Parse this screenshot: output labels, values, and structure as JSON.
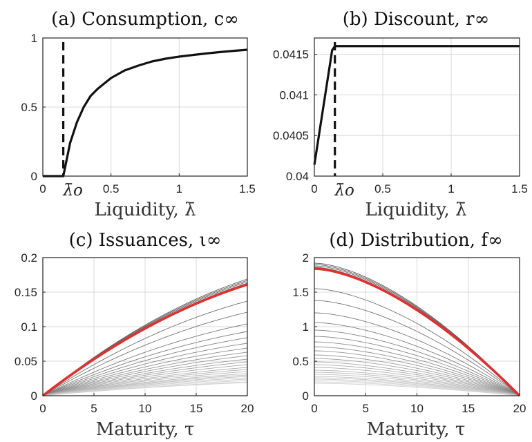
{
  "chart_data": [
    {
      "id": "a",
      "type": "line",
      "title": "(a) Consumption, c∞",
      "xlabel": "Liquidity, λ̄",
      "ylabel": "",
      "xlim": [
        0,
        1.5
      ],
      "ylim": [
        0,
        1
      ],
      "xticks": [
        0,
        0.5,
        1,
        1.5
      ],
      "xtick_labels": [
        "0",
        "0.5",
        "1",
        "1.5"
      ],
      "yticks": [
        0,
        0.5,
        1
      ],
      "ytick_labels": [
        "0",
        "0.5",
        "1"
      ],
      "vline": {
        "x": 0.15,
        "label": "λ̄o"
      },
      "grid": true,
      "series": [
        {
          "color": "#111111",
          "style": "solid",
          "x": [
            0,
            0.15,
            0.2,
            0.25,
            0.3,
            0.35,
            0.4,
            0.5,
            0.6,
            0.7,
            0.8,
            0.9,
            1.0,
            1.1,
            1.2,
            1.3,
            1.4,
            1.5
          ],
          "y": [
            0,
            0,
            0.24,
            0.39,
            0.5,
            0.58,
            0.63,
            0.71,
            0.765,
            0.8,
            0.83,
            0.85,
            0.865,
            0.877,
            0.888,
            0.898,
            0.907,
            0.915
          ]
        }
      ]
    },
    {
      "id": "b",
      "type": "line",
      "title": "(b) Discount, r∞",
      "xlabel": "Liquidity, λ̄",
      "ylabel": "",
      "xlim": [
        0,
        1.5
      ],
      "ylim": [
        0.04,
        0.0417
      ],
      "xticks": [
        0,
        0.5,
        1,
        1.5
      ],
      "xtick_labels": [
        "0",
        "0.5",
        "1",
        "1.5"
      ],
      "yticks": [
        0.04,
        0.0405,
        0.041,
        0.0415
      ],
      "ytick_labels": [
        "0.04",
        "0.0405",
        "0.041",
        "0.0415"
      ],
      "vline": {
        "x": 0.15,
        "label": "λ̄o"
      },
      "grid": true,
      "series": [
        {
          "color": "#111111",
          "style": "solid",
          "x": [
            0,
            0.13,
            0.15,
            1.5
          ],
          "y": [
            0.04014,
            0.04155,
            0.0416,
            0.0416
          ]
        }
      ]
    },
    {
      "id": "c",
      "type": "line",
      "title": "(c) Issuances, ι∞",
      "xlabel": "Maturity, τ",
      "ylabel": "",
      "xlim": [
        0,
        20
      ],
      "ylim": [
        0,
        0.2
      ],
      "xticks": [
        0,
        5,
        10,
        15,
        20
      ],
      "xtick_labels": [
        "0",
        "5",
        "10",
        "15",
        "20"
      ],
      "yticks": [
        0,
        0.05,
        0.1,
        0.15,
        0.2
      ],
      "ytick_labels": [
        "0",
        "0.05",
        "0.1",
        "0.15",
        "0.2"
      ],
      "grid": true,
      "family": {
        "form": "issuance",
        "end_values": [
          0.169,
          0.167,
          0.165,
          0.163,
          0.137,
          0.121,
          0.104,
          0.093,
          0.084,
          0.076,
          0.069,
          0.063,
          0.058,
          0.053,
          0.049,
          0.045,
          0.041,
          0.038,
          0.035,
          0.032,
          0.03,
          0.028,
          0.026,
          0.024,
          0.022,
          0.02,
          0.019
        ],
        "color": "#555555"
      },
      "highlight": {
        "end_value": 0.161,
        "color": "#e03030"
      }
    },
    {
      "id": "d",
      "type": "line",
      "title": "(d) Distribution, f∞",
      "xlabel": "Maturity, τ",
      "ylabel": "",
      "xlim": [
        0,
        20
      ],
      "ylim": [
        0,
        2
      ],
      "xticks": [
        0,
        5,
        10,
        15,
        20
      ],
      "xtick_labels": [
        "0",
        "5",
        "10",
        "15",
        "20"
      ],
      "yticks": [
        0,
        0.5,
        1,
        1.5,
        2
      ],
      "ytick_labels": [
        "0",
        "0.5",
        "1",
        "1.5",
        "2"
      ],
      "grid": true,
      "family": {
        "form": "distribution",
        "start_values": [
          1.92,
          1.9,
          1.88,
          1.86,
          1.55,
          1.38,
          1.2,
          1.06,
          0.95,
          0.86,
          0.78,
          0.71,
          0.65,
          0.59,
          0.54,
          0.49,
          0.45,
          0.41,
          0.37,
          0.34,
          0.31,
          0.28,
          0.26,
          0.24,
          0.22,
          0.2,
          0.18
        ],
        "color": "#555555"
      },
      "highlight": {
        "start_value": 1.84,
        "color": "#e03030"
      }
    }
  ]
}
